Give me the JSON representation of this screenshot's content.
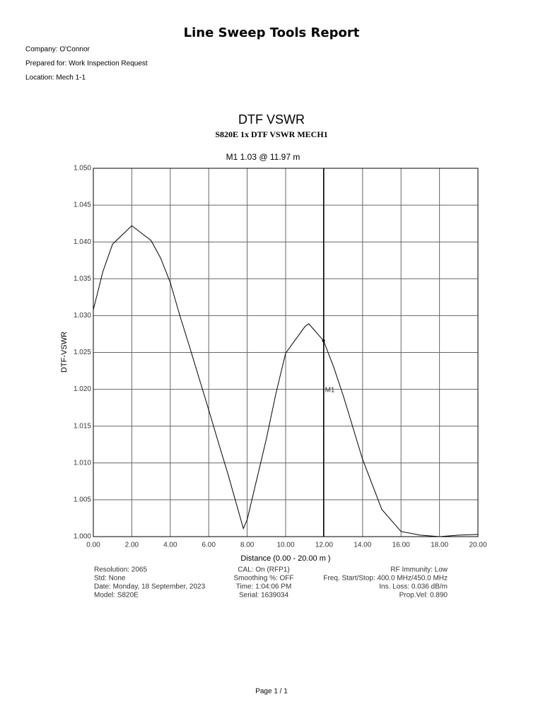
{
  "header": {
    "title": "Line Sweep Tools Report",
    "lines": [
      "Company: O'Connor",
      "Prepared for: Work Inspection Request",
      "Location: Mech 1-1"
    ]
  },
  "chart_data": {
    "type": "line",
    "title": "DTF VSWR",
    "subtitle": "S820E 1x  DTF VSWR MECH1",
    "marker_readout": "M1  1.03 @ 11.97 m",
    "marker_label": "M1",
    "marker_x": 11.97,
    "marker_y": 1.0266,
    "x_label": "Distance (0.00 - 20.00 m )",
    "y_label": "DTF-VSWR",
    "color": "#000000",
    "x": [
      0,
      0.5,
      1,
      2,
      3,
      3.5,
      4,
      4.5,
      5,
      6,
      6.5,
      7,
      7.8,
      8,
      9,
      9.5,
      10,
      11,
      11.2,
      11.97,
      12.5,
      13,
      14,
      15,
      16,
      17,
      18,
      19,
      20
    ],
    "values": [
      1.0308,
      1.036,
      1.0397,
      1.0422,
      1.0402,
      1.0378,
      1.0345,
      1.03,
      1.0258,
      1.0172,
      1.0128,
      1.0085,
      1.0011,
      1.0023,
      1.0133,
      1.0195,
      1.0249,
      1.0285,
      1.0289,
      1.0266,
      1.023,
      1.0191,
      1.0105,
      1.0037,
      1.0007,
      1.0002,
      1.0,
      1.0002,
      1.0003
    ],
    "xlim": [
      0,
      20
    ],
    "ylim": [
      1.0,
      1.05
    ],
    "xticks": [
      {
        "value": 0,
        "label": "0.00"
      },
      {
        "value": 2,
        "label": "2.00"
      },
      {
        "value": 4,
        "label": "4.00"
      },
      {
        "value": 6,
        "label": "6.00"
      },
      {
        "value": 8,
        "label": "8.00"
      },
      {
        "value": 10,
        "label": "10.00"
      },
      {
        "value": 12,
        "label": "12.00"
      },
      {
        "value": 14,
        "label": "14.00"
      },
      {
        "value": 16,
        "label": "16.00"
      },
      {
        "value": 18,
        "label": "18.00"
      },
      {
        "value": 20,
        "label": "20.00"
      }
    ],
    "yticks": [
      {
        "value": 1.0,
        "label": "1.000"
      },
      {
        "value": 1.005,
        "label": "1.005"
      },
      {
        "value": 1.01,
        "label": "1.010"
      },
      {
        "value": 1.015,
        "label": "1.015"
      },
      {
        "value": 1.02,
        "label": "1.020"
      },
      {
        "value": 1.025,
        "label": "1.025"
      },
      {
        "value": 1.03,
        "label": "1.030"
      },
      {
        "value": 1.035,
        "label": "1.035"
      },
      {
        "value": 1.04,
        "label": "1.040"
      },
      {
        "value": 1.045,
        "label": "1.045"
      },
      {
        "value": 1.05,
        "label": "1.050"
      }
    ],
    "grid": true,
    "info": [
      [
        "Resolution: 2065",
        "CAL: On (RFP1)",
        "RF Immunity: Low"
      ],
      [
        "Std: None",
        "Smoothing %:  OFF",
        "Freq. Start/Stop: 400.0 MHz/450.0 MHz"
      ],
      [
        "Date: Monday, 18 September, 2023",
        "Time: 1:04:06 PM",
        "Ins. Loss: 0.036 dB/m"
      ],
      [
        "Model: S820E",
        "Serial: 1639034",
        "Prop.Vel: 0.890"
      ]
    ]
  },
  "footer": "Page 1 / 1"
}
